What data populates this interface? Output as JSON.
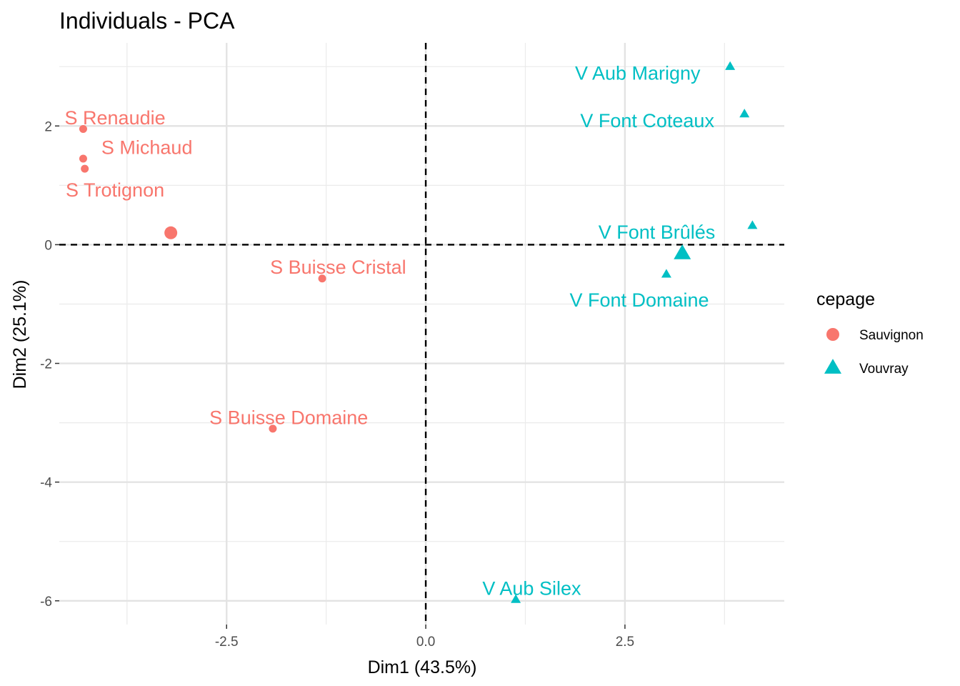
{
  "chart_data": {
    "type": "scatter",
    "title": "Individuals - PCA",
    "xlabel": "Dim1 (43.5%)",
    "ylabel": "Dim2 (25.1%)",
    "xlim": [
      -4.6,
      4.5
    ],
    "ylim": [
      -6.4,
      3.4
    ],
    "x_major_ticks": [
      -2.5,
      0.0,
      2.5
    ],
    "x_tick_labels": [
      "-2.5",
      "0.0",
      "2.5"
    ],
    "x_minor_grid": [
      -3.75,
      -1.25,
      1.25,
      3.75
    ],
    "y_major_ticks": [
      2,
      0,
      -2,
      -4,
      -6
    ],
    "y_tick_labels": [
      "2",
      "0",
      "-2",
      "-4",
      "-6"
    ],
    "y_minor_grid": [
      3,
      1,
      -1,
      -3,
      -5
    ],
    "grid": true,
    "reference_lines": {
      "x": 0,
      "y": 0,
      "style": "dashed"
    },
    "legend": {
      "title": "cepage",
      "position": "right",
      "entries": [
        {
          "name": "Sauvignon",
          "shape": "circle",
          "color": "#F8766D"
        },
        {
          "name": "Vouvray",
          "shape": "triangle",
          "color": "#00BFC4"
        }
      ]
    },
    "series": [
      {
        "name": "Sauvignon",
        "shape": "circle",
        "color": "#F8766D",
        "centroid": {
          "x": -3.2,
          "y": 0.2
        },
        "points": [
          {
            "label": "S Renaudie",
            "x": -4.3,
            "y": 1.95,
            "label_x": -3.9,
            "label_y": 2.15
          },
          {
            "label": "S Michaud",
            "x": -4.3,
            "y": 1.45,
            "label_x": -3.5,
            "label_y": 1.65
          },
          {
            "label": "S Trotignon",
            "x": -4.28,
            "y": 1.28,
            "label_x": -3.9,
            "label_y": 0.93
          },
          {
            "label": "S Buisse Cristal",
            "x": -1.3,
            "y": -0.57,
            "label_x": -1.1,
            "label_y": -0.37
          },
          {
            "label": "S Buisse Domaine",
            "x": -1.92,
            "y": -3.1,
            "label_x": -1.72,
            "label_y": -2.9
          }
        ]
      },
      {
        "name": "Vouvray",
        "shape": "triangle",
        "color": "#00BFC4",
        "centroid": {
          "x": 3.22,
          "y": -0.15
        },
        "points": [
          {
            "label": "V Aub Marigny",
            "x": 3.82,
            "y": 3.0,
            "label_x": 2.66,
            "label_y": 2.9
          },
          {
            "label": "V Font Coteaux",
            "x": 4.0,
            "y": 2.2,
            "label_x": 2.78,
            "label_y": 2.1
          },
          {
            "label": "V Font Brûlés",
            "x": 4.1,
            "y": 0.32,
            "label_x": 2.9,
            "label_y": 0.22
          },
          {
            "label": "V Font Domaine",
            "x": 3.02,
            "y": -0.5,
            "label_x": 2.68,
            "label_y": -0.92
          },
          {
            "label": "V Aub Silex",
            "x": 1.13,
            "y": -5.98,
            "label_x": 1.33,
            "label_y": -5.78
          }
        ]
      }
    ]
  }
}
